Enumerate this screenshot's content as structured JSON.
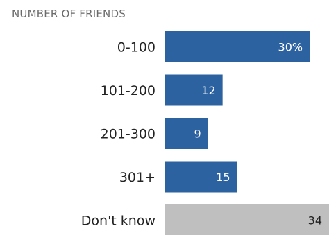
{
  "chart_data": {
    "type": "bar",
    "orientation": "horizontal",
    "title": "NUMBER OF FRIENDS",
    "categories": [
      "0-100",
      "101-200",
      "201-300",
      "301+",
      "Don't know"
    ],
    "values": [
      30,
      12,
      9,
      15,
      34
    ],
    "value_labels": [
      "30%",
      "12",
      "9",
      "15",
      "34"
    ],
    "xlim": [
      0,
      34
    ],
    "grid": false,
    "legend": "none"
  },
  "colors": {
    "bar": "#2d62a1",
    "bar_unknown": "#bfbfbf",
    "label_on_bar": "#ffffff",
    "label_on_unknown": "#222222"
  }
}
